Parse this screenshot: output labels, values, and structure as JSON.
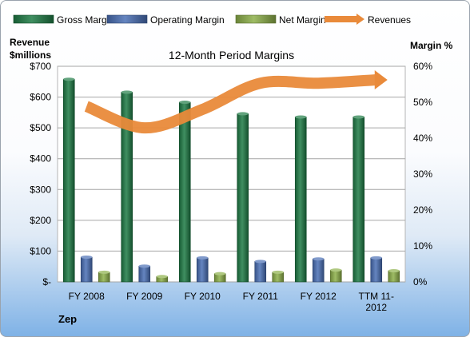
{
  "chart_data": {
    "type": "bar",
    "title": "12-Month Period Margins",
    "ylabel_left": "Revenue\n$millions",
    "ylabel_right": "Margin %",
    "footer": "Zep",
    "categories": [
      "FY 2008",
      "FY 2009",
      "FY 2010",
      "FY 2011",
      "FY 2012",
      "TTM 11-2012"
    ],
    "y_left_ticks": [
      "$-",
      "$100",
      "$200",
      "$300",
      "$400",
      "$500",
      "$600",
      "$700"
    ],
    "y_right_ticks": [
      "0%",
      "10%",
      "20%",
      "30%",
      "40%",
      "50%",
      "60%"
    ],
    "ylim_left": [
      0,
      700
    ],
    "ylim_right": [
      0,
      0.6
    ],
    "grid": true,
    "legend_position": "top",
    "series": [
      {
        "name": "Gross Margin",
        "axis": "right",
        "type": "bar",
        "color": "#1e7b45",
        "values": [
          0.564,
          0.528,
          0.5,
          0.468,
          0.459,
          0.459
        ]
      },
      {
        "name": "Operating Margin",
        "axis": "right",
        "type": "bar",
        "color": "#4a6fb5",
        "values": [
          0.069,
          0.044,
          0.067,
          0.057,
          0.064,
          0.067
        ]
      },
      {
        "name": "Net Margin",
        "axis": "right",
        "type": "bar",
        "color": "#8db04a",
        "values": [
          0.027,
          0.015,
          0.023,
          0.027,
          0.033,
          0.031
        ]
      },
      {
        "name": "Revenues",
        "axis": "left",
        "type": "line",
        "color": "#e98a3a",
        "values": [
          570,
          500,
          560,
          645,
          645,
          656
        ]
      }
    ]
  }
}
